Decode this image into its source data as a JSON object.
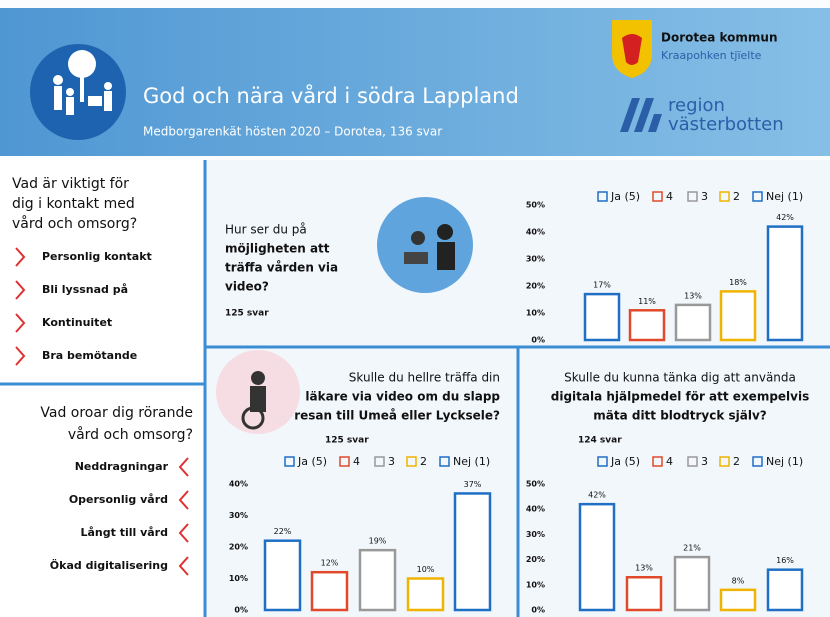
{
  "header": {
    "title": "God och nära vård i södra Lappland",
    "subtitle": "Medborgarenkät hösten 2020 – Dorotea, 136 svar",
    "org1": "Dorotea kommun",
    "org1_sub": "Kraapohken tjïelte",
    "org2_lines": [
      "region",
      "västerbotten"
    ]
  },
  "sidebar": {
    "important": {
      "question_lines": [
        "Vad är viktigt för",
        "dig i kontakt med",
        "vård och omsorg?"
      ],
      "items": [
        "Personlig kontakt",
        "Bli lyssnad på",
        "Kontinuitet",
        "Bra bemötande"
      ]
    },
    "worries": {
      "question_lines": [
        "Vad oroar dig rörande",
        "vård och omsorg?"
      ],
      "items": [
        "Neddragningar",
        "Opersonlig vård",
        "Långt till vård",
        "Ökad digitalisering"
      ]
    }
  },
  "chart_data": [
    {
      "type": "bar",
      "question_lines": [
        "Hur ser du på",
        "möjligheten att",
        "träffa vården via",
        "video?"
      ],
      "responses": "125 svar",
      "categories": [
        "Ja (5)",
        "4",
        "3",
        "2",
        "Nej (1)"
      ],
      "colors": [
        "#1f6fc5",
        "#e04a2a",
        "#999999",
        "#f0b400",
        "#1f6fc5"
      ],
      "values": [
        17,
        11,
        13,
        18,
        42
      ],
      "value_labels": [
        "17%",
        "11%",
        "13%",
        "18%",
        "42%"
      ],
      "ylim": [
        0,
        50
      ],
      "yticks": [
        {
          "value": 0,
          "label": "0%"
        },
        {
          "value": 10,
          "label": "10%"
        },
        {
          "value": 20,
          "label": "20%"
        },
        {
          "value": 30,
          "label": "30%"
        },
        {
          "value": 40,
          "label": "40%"
        },
        {
          "value": 50,
          "label": "50%"
        }
      ]
    },
    {
      "type": "bar",
      "question_lines": [
        "Skulle du hellre träffa din",
        "läkare via video om du slapp",
        "resan till Umeå eller Lycksele?"
      ],
      "responses": "125 svar",
      "categories": [
        "Ja (5)",
        "4",
        "3",
        "2",
        "Nej (1)"
      ],
      "colors": [
        "#1f6fc5",
        "#e04a2a",
        "#999999",
        "#f0b400",
        "#1f6fc5"
      ],
      "values": [
        22,
        12,
        19,
        10,
        37
      ],
      "value_labels": [
        "22%",
        "12%",
        "19%",
        "10%",
        "37%"
      ],
      "ylim": [
        0,
        40
      ],
      "yticks": [
        {
          "value": 0,
          "label": "0%"
        },
        {
          "value": 10,
          "label": "10%"
        },
        {
          "value": 20,
          "label": "20%"
        },
        {
          "value": 30,
          "label": "30%"
        },
        {
          "value": 40,
          "label": "40%"
        }
      ]
    },
    {
      "type": "bar",
      "question_lines": [
        "Skulle du kunna tänka dig att använda",
        "digitala hjälpmedel för att exempelvis",
        "mäta ditt blodtryck själv?"
      ],
      "responses": "124 svar",
      "categories": [
        "Ja (5)",
        "4",
        "3",
        "2",
        "Nej (1)"
      ],
      "colors": [
        "#1f6fc5",
        "#e04a2a",
        "#999999",
        "#f0b400",
        "#1f6fc5"
      ],
      "values": [
        42,
        13,
        21,
        8,
        16
      ],
      "value_labels": [
        "42%",
        "13%",
        "21%",
        "8%",
        "16%"
      ],
      "ylim": [
        0,
        50
      ],
      "yticks": [
        {
          "value": 0,
          "label": "0%"
        },
        {
          "value": 10,
          "label": "10%"
        },
        {
          "value": 20,
          "label": "20%"
        },
        {
          "value": 30,
          "label": "30%"
        },
        {
          "value": 40,
          "label": "40%"
        },
        {
          "value": 50,
          "label": "50%"
        }
      ]
    }
  ]
}
